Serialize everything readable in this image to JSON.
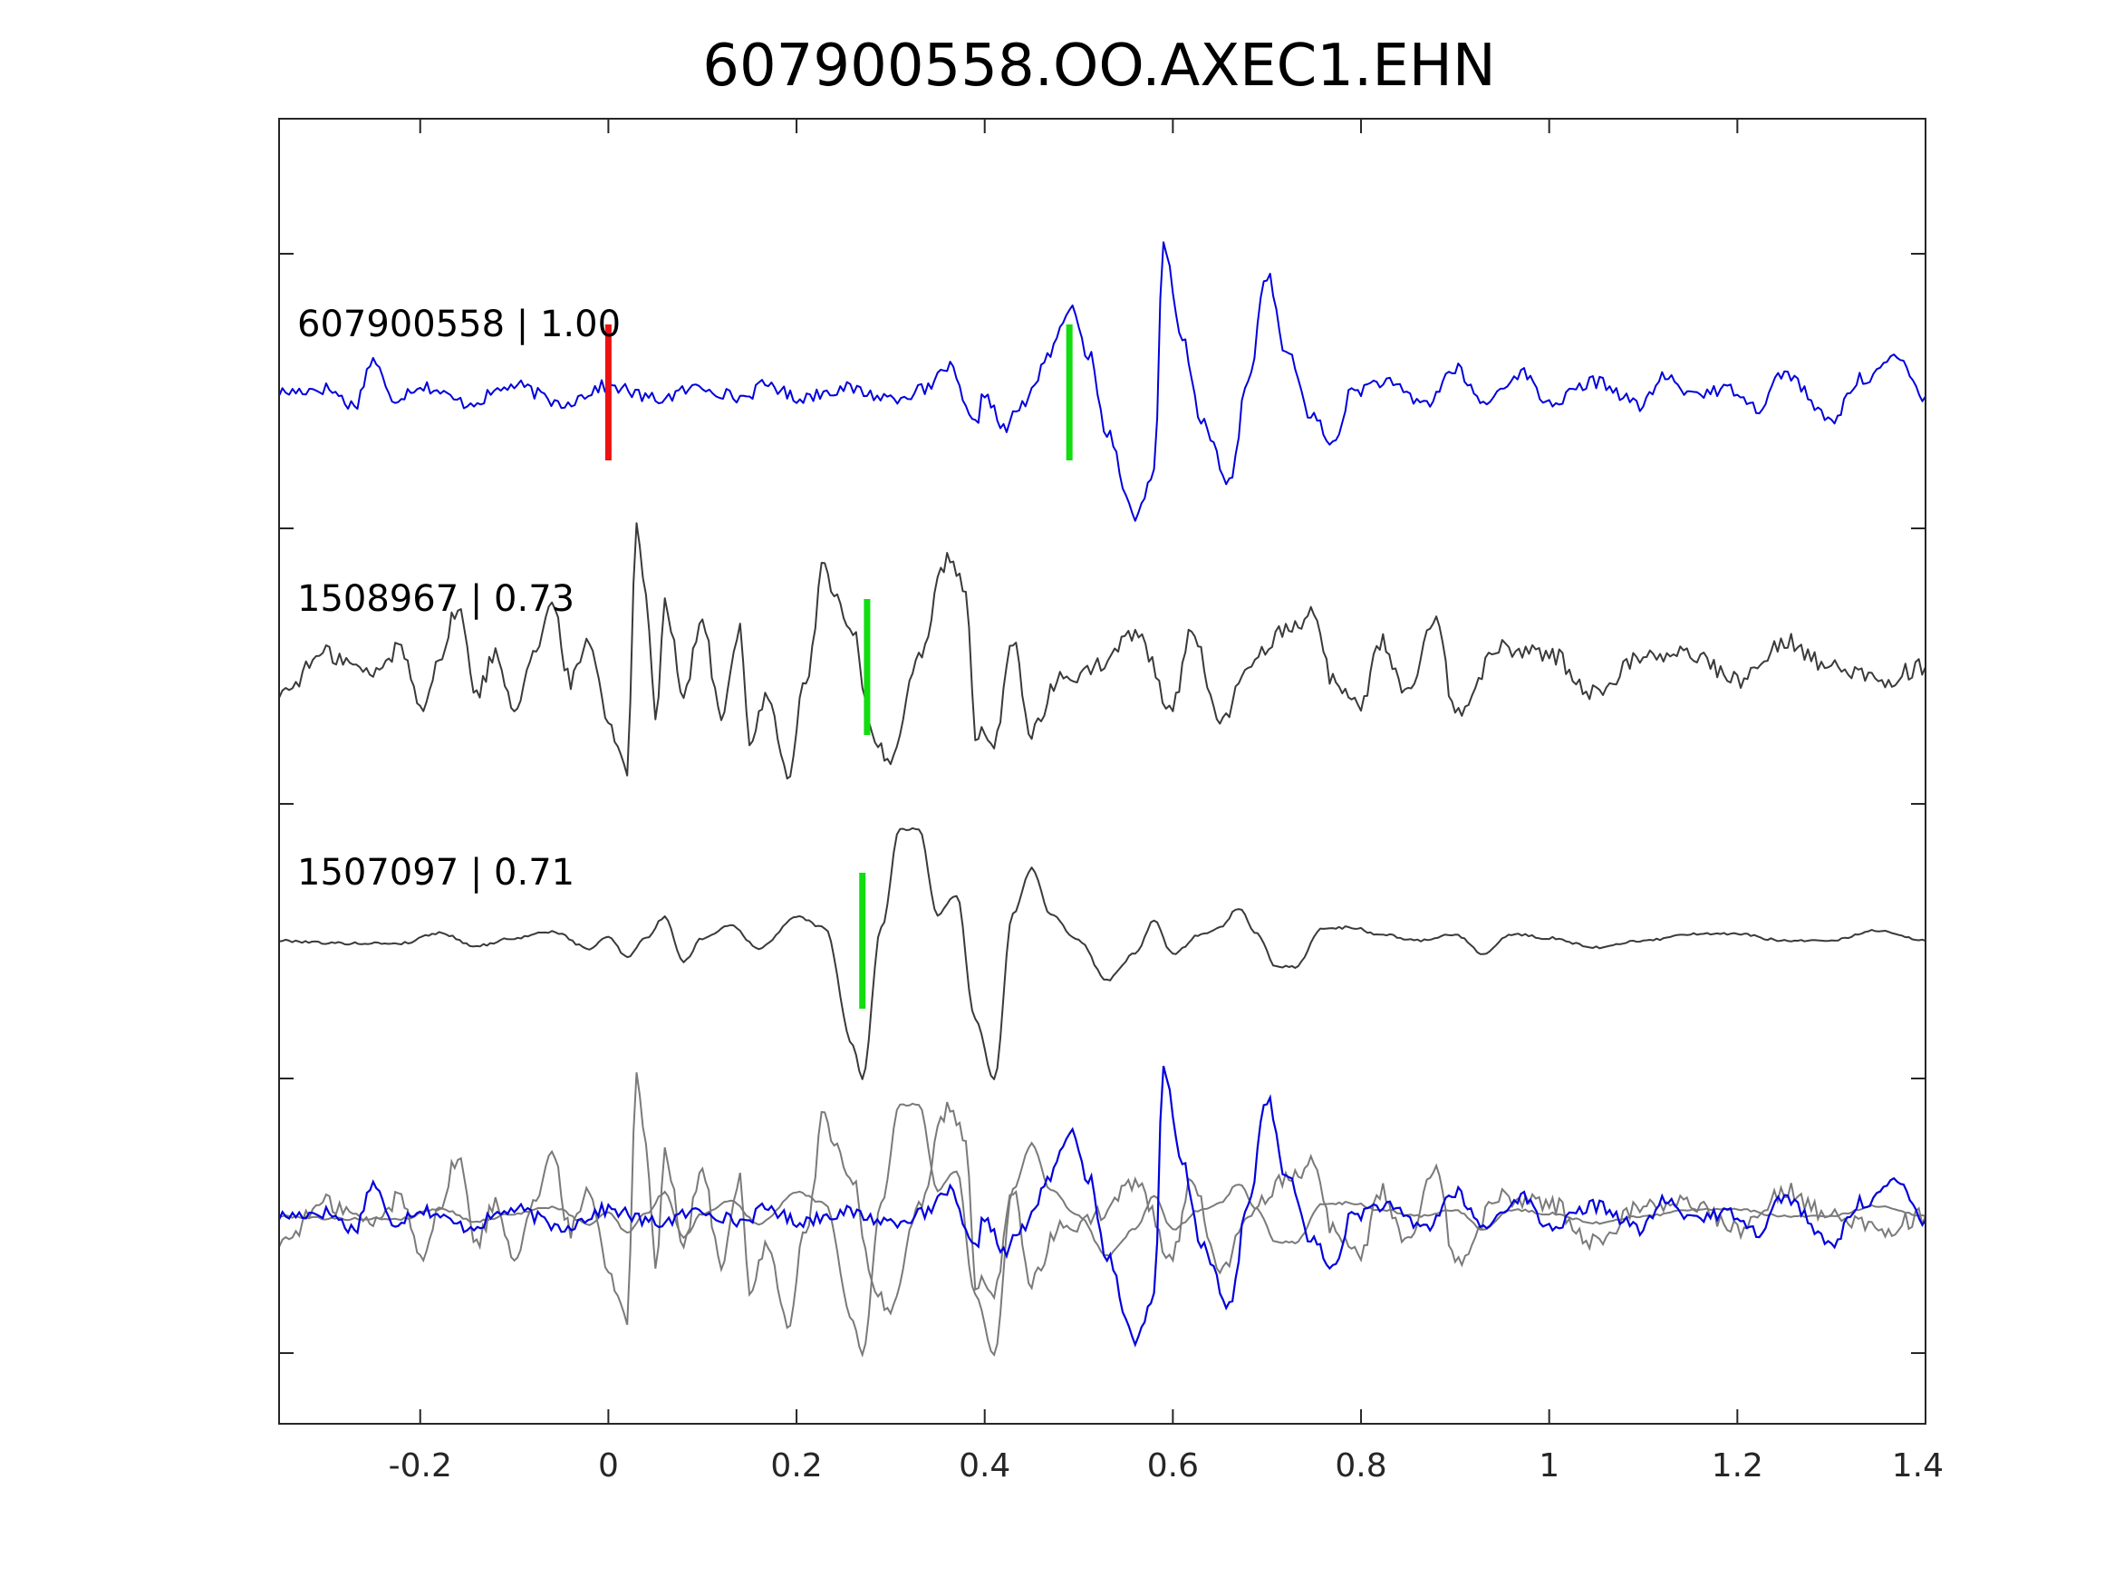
{
  "chart_data": {
    "type": "line",
    "title": "607900558.OO.AXEC1.EHN",
    "xlabel": "",
    "ylabel": "",
    "xlim": [
      -0.35,
      1.4
    ],
    "xticks": [
      {
        "value": -0.2,
        "label": "-0.2"
      },
      {
        "value": 0,
        "label": "0"
      },
      {
        "value": 0.2,
        "label": "0.2"
      },
      {
        "value": 0.4,
        "label": "0.4"
      },
      {
        "value": 0.6,
        "label": "0.6"
      },
      {
        "value": 0.8,
        "label": "0.8"
      },
      {
        "value": 1,
        "label": "1"
      },
      {
        "value": 1.2,
        "label": "1.2"
      },
      {
        "value": 1.4,
        "label": "1.4"
      }
    ],
    "grid": false,
    "colors": {
      "primary": "#0000dd",
      "reference": "#3a3a3a",
      "overlay_reference": "#7a7a7a",
      "pick_origin": "#ee1111",
      "pick_arrival": "#11dd11",
      "axes": "#262626"
    },
    "traces": [
      {
        "label": "607900558 | 1.00",
        "color": "#0000dd",
        "origin_pick": 0.0,
        "arrival_pick": 0.49,
        "keypoints": [
          [
            -0.35,
            0
          ],
          [
            -0.3,
            0.03
          ],
          [
            -0.27,
            -0.1
          ],
          [
            -0.25,
            0.25
          ],
          [
            -0.23,
            -0.05
          ],
          [
            -0.2,
            0.05
          ],
          [
            -0.15,
            -0.08
          ],
          [
            -0.1,
            0.05
          ],
          [
            -0.05,
            -0.08
          ],
          [
            0.0,
            0.05
          ],
          [
            0.05,
            -0.05
          ],
          [
            0.1,
            0.04
          ],
          [
            0.14,
            -0.04
          ],
          [
            0.17,
            0.06
          ],
          [
            0.2,
            -0.04
          ],
          [
            0.25,
            0.03
          ],
          [
            0.3,
            -0.04
          ],
          [
            0.34,
            0.02
          ],
          [
            0.36,
            0.2
          ],
          [
            0.39,
            -0.25
          ],
          [
            0.4,
            0.0
          ],
          [
            0.42,
            -0.28
          ],
          [
            0.44,
            -0.1
          ],
          [
            0.47,
            0.3
          ],
          [
            0.49,
            0.64
          ],
          [
            0.51,
            0.3
          ],
          [
            0.53,
            -0.3
          ],
          [
            0.56,
            -0.95
          ],
          [
            0.58,
            -0.6
          ],
          [
            0.59,
            1.1
          ],
          [
            0.61,
            0.4
          ],
          [
            0.63,
            -0.2
          ],
          [
            0.66,
            -0.7
          ],
          [
            0.68,
            0.1
          ],
          [
            0.7,
            0.9
          ],
          [
            0.72,
            0.3
          ],
          [
            0.75,
            -0.2
          ],
          [
            0.77,
            -0.4
          ],
          [
            0.79,
            0.0
          ],
          [
            0.82,
            0.08
          ],
          [
            0.87,
            -0.08
          ],
          [
            0.9,
            0.18
          ],
          [
            0.93,
            -0.08
          ],
          [
            0.97,
            0.15
          ],
          [
            1.0,
            -0.08
          ],
          [
            1.05,
            0.08
          ],
          [
            1.1,
            -0.1
          ],
          [
            1.12,
            0.12
          ],
          [
            1.15,
            0.0
          ],
          [
            1.2,
            0.02
          ],
          [
            1.22,
            -0.12
          ],
          [
            1.25,
            0.15
          ],
          [
            1.3,
            -0.22
          ],
          [
            1.33,
            0.1
          ],
          [
            1.37,
            0.25
          ],
          [
            1.4,
            -0.03
          ]
        ]
      },
      {
        "label": "1508967 | 0.73",
        "color": "#3a3a3a",
        "arrival_pick": 0.275,
        "keypoints": [
          [
            -0.35,
            -0.2
          ],
          [
            -0.3,
            0.1
          ],
          [
            -0.25,
            -0.05
          ],
          [
            -0.22,
            0.15
          ],
          [
            -0.2,
            -0.3
          ],
          [
            -0.18,
            0.05
          ],
          [
            -0.16,
            0.45
          ],
          [
            -0.14,
            -0.2
          ],
          [
            -0.12,
            0.1
          ],
          [
            -0.1,
            -0.3
          ],
          [
            -0.08,
            0.1
          ],
          [
            -0.06,
            0.45
          ],
          [
            -0.04,
            -0.1
          ],
          [
            -0.02,
            0.2
          ],
          [
            0.0,
            -0.4
          ],
          [
            0.02,
            -0.8
          ],
          [
            0.03,
            1.1
          ],
          [
            0.04,
            0.6
          ],
          [
            0.05,
            -0.4
          ],
          [
            0.06,
            0.5
          ],
          [
            0.08,
            -0.2
          ],
          [
            0.1,
            0.35
          ],
          [
            0.12,
            -0.4
          ],
          [
            0.14,
            0.3
          ],
          [
            0.15,
            -0.55
          ],
          [
            0.17,
            -0.2
          ],
          [
            0.19,
            -0.85
          ],
          [
            0.21,
            -0.1
          ],
          [
            0.23,
            0.8
          ],
          [
            0.24,
            0.5
          ],
          [
            0.26,
            0.3
          ],
          [
            0.28,
            -0.5
          ],
          [
            0.3,
            -0.75
          ],
          [
            0.33,
            0.1
          ],
          [
            0.36,
            0.8
          ],
          [
            0.38,
            0.6
          ],
          [
            0.39,
            -0.5
          ],
          [
            0.41,
            -0.6
          ],
          [
            0.43,
            0.2
          ],
          [
            0.45,
            -0.5
          ],
          [
            0.48,
            -0.1
          ],
          [
            0.52,
            0.0
          ],
          [
            0.56,
            0.25
          ],
          [
            0.6,
            -0.3
          ],
          [
            0.62,
            0.3
          ],
          [
            0.65,
            -0.45
          ],
          [
            0.68,
            0.0
          ],
          [
            0.72,
            0.3
          ],
          [
            0.75,
            0.4
          ],
          [
            0.77,
            -0.1
          ],
          [
            0.8,
            -0.3
          ],
          [
            0.82,
            0.2
          ],
          [
            0.85,
            -0.2
          ],
          [
            0.88,
            0.35
          ],
          [
            0.9,
            -0.35
          ],
          [
            0.95,
            0.15
          ],
          [
            1.0,
            0.1
          ],
          [
            1.05,
            -0.2
          ],
          [
            1.1,
            0.1
          ],
          [
            1.15,
            0.1
          ],
          [
            1.2,
            -0.1
          ],
          [
            1.25,
            0.2
          ],
          [
            1.3,
            0.0
          ],
          [
            1.35,
            -0.1
          ],
          [
            1.4,
            0.0
          ]
        ]
      },
      {
        "label": "1507097 | 0.71",
        "color": "#3a3a3a",
        "arrival_pick": 0.27,
        "keypoints": [
          [
            -0.35,
            0.0
          ],
          [
            -0.28,
            -0.02
          ],
          [
            -0.22,
            -0.02
          ],
          [
            -0.18,
            0.06
          ],
          [
            -0.14,
            -0.04
          ],
          [
            -0.1,
            0.02
          ],
          [
            -0.06,
            0.07
          ],
          [
            -0.02,
            -0.06
          ],
          [
            0.0,
            0.03
          ],
          [
            0.02,
            -0.12
          ],
          [
            0.04,
            0.02
          ],
          [
            0.06,
            0.18
          ],
          [
            0.08,
            -0.16
          ],
          [
            0.1,
            0.02
          ],
          [
            0.13,
            0.12
          ],
          [
            0.16,
            -0.06
          ],
          [
            0.2,
            0.18
          ],
          [
            0.23,
            0.1
          ],
          [
            0.26,
            -0.8
          ],
          [
            0.27,
            -1.05
          ],
          [
            0.29,
            0.1
          ],
          [
            0.31,
            0.85
          ],
          [
            0.33,
            0.85
          ],
          [
            0.35,
            0.2
          ],
          [
            0.37,
            0.35
          ],
          [
            0.39,
            -0.6
          ],
          [
            0.41,
            -1.05
          ],
          [
            0.43,
            0.2
          ],
          [
            0.45,
            0.55
          ],
          [
            0.47,
            0.2
          ],
          [
            0.5,
            0.0
          ],
          [
            0.53,
            -0.3
          ],
          [
            0.56,
            -0.1
          ],
          [
            0.58,
            0.15
          ],
          [
            0.6,
            -0.1
          ],
          [
            0.63,
            0.05
          ],
          [
            0.65,
            0.1
          ],
          [
            0.67,
            0.25
          ],
          [
            0.69,
            0.05
          ],
          [
            0.71,
            -0.2
          ],
          [
            0.73,
            -0.2
          ],
          [
            0.76,
            0.1
          ],
          [
            0.79,
            0.1
          ],
          [
            0.82,
            0.05
          ],
          [
            0.86,
            0.0
          ],
          [
            0.9,
            0.05
          ],
          [
            0.93,
            -0.1
          ],
          [
            0.96,
            0.05
          ],
          [
            1.0,
            0.02
          ],
          [
            1.05,
            -0.05
          ],
          [
            1.1,
            0.0
          ],
          [
            1.15,
            0.05
          ],
          [
            1.2,
            0.05
          ],
          [
            1.25,
            0.0
          ],
          [
            1.3,
            0.0
          ],
          [
            1.35,
            0.08
          ],
          [
            1.4,
            0.0
          ]
        ]
      }
    ]
  }
}
